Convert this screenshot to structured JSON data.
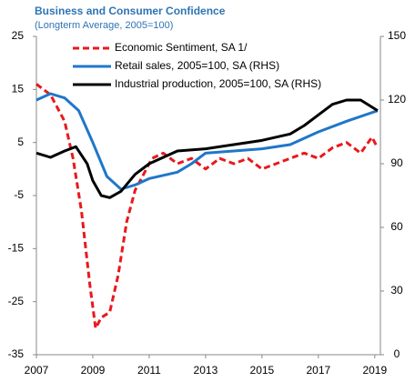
{
  "chart_data": {
    "type": "line",
    "title": "Business and Consumer Confidence",
    "subtitle": "(Longterm Average, 2005=100)",
    "xlim": [
      2007,
      2019.2
    ],
    "xticks": [
      2007,
      2009,
      2011,
      2013,
      2015,
      2017,
      2019
    ],
    "ylim": [
      -35,
      25
    ],
    "yticks": [
      -35,
      -25,
      -15,
      -5,
      5,
      15,
      25
    ],
    "y2lim": [
      0,
      150
    ],
    "y2ticks": [
      0,
      30,
      60,
      90,
      120,
      150
    ],
    "legend": "upper left",
    "series": [
      {
        "name": "Economic Sentiment, SA 1/",
        "color": "#e8191c",
        "dash": true,
        "x": [
          2007,
          2007.5,
          2008,
          2008.3,
          2008.6,
          2008.9,
          2009.1,
          2009.3,
          2009.6,
          2009.9,
          2010.2,
          2010.5,
          2010.8,
          2011.1,
          2011.5,
          2012,
          2012.5,
          2013,
          2013.5,
          2014,
          2014.5,
          2015,
          2015.5,
          2016,
          2016.5,
          2017,
          2017.5,
          2018,
          2018.5,
          2018.9,
          2019.1
        ],
        "values": [
          16,
          14,
          9,
          2,
          -8,
          -22,
          -30,
          -28,
          -27,
          -20,
          -10,
          -4,
          -1,
          2,
          3,
          1,
          2,
          0,
          2,
          1,
          2,
          0,
          1,
          2,
          3,
          2,
          4,
          5,
          3,
          6,
          4
        ]
      },
      {
        "name": "Retail sales, 2005=100, SA (RHS)",
        "color": "#1f77c8",
        "axis": "y2",
        "x": [
          2007,
          2007.5,
          2008,
          2008.5,
          2009,
          2009.5,
          2010,
          2010.5,
          2011,
          2012,
          2012.5,
          2013,
          2014,
          2015,
          2016,
          2017,
          2018,
          2019.1
        ],
        "values": [
          120,
          123,
          121,
          115,
          100,
          84,
          78,
          80,
          83,
          86,
          90,
          95,
          96,
          97,
          99,
          105,
          110,
          115
        ]
      },
      {
        "name": "Industrial production, 2005=100, SA (RHS)",
        "color": "#000000",
        "axis": "y2",
        "x": [
          2007,
          2007.5,
          2008,
          2008.4,
          2008.8,
          2009,
          2009.3,
          2009.6,
          2010,
          2010.5,
          2011,
          2011.5,
          2012,
          2013,
          2014,
          2015,
          2016,
          2016.5,
          2017,
          2017.5,
          2018,
          2018.5,
          2019.1
        ],
        "values": [
          95,
          93,
          96,
          98,
          90,
          82,
          75,
          74,
          77,
          85,
          90,
          93,
          96,
          97,
          99,
          101,
          104,
          108,
          113,
          118,
          120,
          120,
          115
        ]
      }
    ]
  }
}
